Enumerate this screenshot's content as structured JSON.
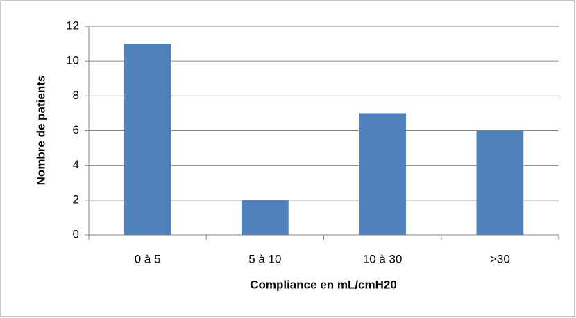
{
  "chart_data": {
    "type": "bar",
    "categories": [
      "0 à 5",
      "5 à 10",
      "10 à 30",
      ">30"
    ],
    "values": [
      11,
      2,
      7,
      6
    ],
    "color": "#4f81bd",
    "x_label": "Compliance en mL/cmH20",
    "y_label": "Nombre de patients",
    "ylim": [
      0,
      12
    ],
    "yticks": [
      0,
      2,
      4,
      6,
      8,
      10,
      12
    ],
    "grid": true
  }
}
